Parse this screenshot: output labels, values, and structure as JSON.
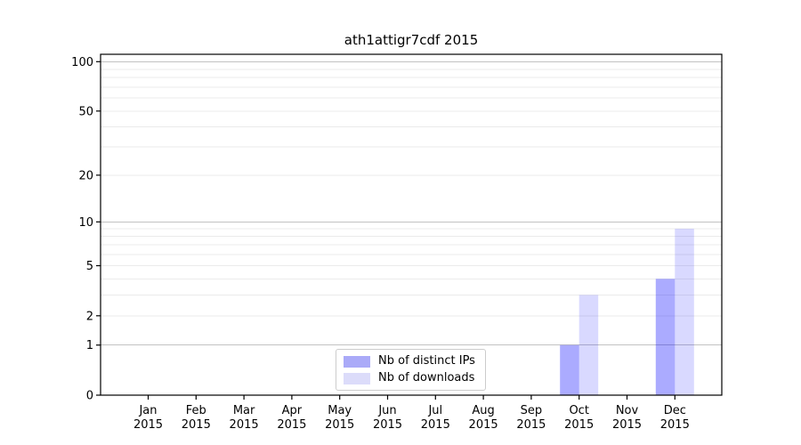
{
  "title": "ath1attigr7cdf 2015",
  "chart_data": {
    "type": "bar",
    "title": "ath1attigr7cdf 2015",
    "xlabel": "",
    "ylabel": "",
    "categories": [
      "Jan 2015",
      "Feb 2015",
      "Mar 2015",
      "Apr 2015",
      "May 2015",
      "Jun 2015",
      "Jul 2015",
      "Aug 2015",
      "Sep 2015",
      "Oct 2015",
      "Nov 2015",
      "Dec 2015"
    ],
    "series": [
      {
        "name": "Nb of distinct IPs",
        "color": "#0000ff",
        "opacity": 0.33,
        "blended_hex": "#aaaaf8",
        "values": [
          0,
          0,
          0,
          0,
          0,
          0,
          0,
          0,
          0,
          1,
          0,
          4
        ]
      },
      {
        "name": "Nb of downloads",
        "color": "#0000ff",
        "opacity": 0.15,
        "blended_hex": "#dcdcfa",
        "values": [
          0,
          0,
          0,
          0,
          0,
          0,
          0,
          0,
          0,
          3,
          0,
          9
        ]
      }
    ],
    "yscale": "log1p",
    "ylim": [
      0,
      111
    ],
    "y_ticks": [
      0,
      1,
      2,
      5,
      10,
      20,
      50,
      100
    ],
    "y_major_gridlines": [
      1,
      10,
      100
    ],
    "y_minor_gridlines": [
      2,
      3,
      4,
      5,
      6,
      7,
      8,
      9,
      20,
      30,
      40,
      50,
      60,
      70,
      80,
      90
    ],
    "grid": "horizontal",
    "legend_position": "lower center",
    "colors": {
      "spine": "#000000",
      "major_grid": "#c2c2c2",
      "minor_grid": "#ebebeb",
      "text": "#000000",
      "background": "#ffffff"
    }
  }
}
